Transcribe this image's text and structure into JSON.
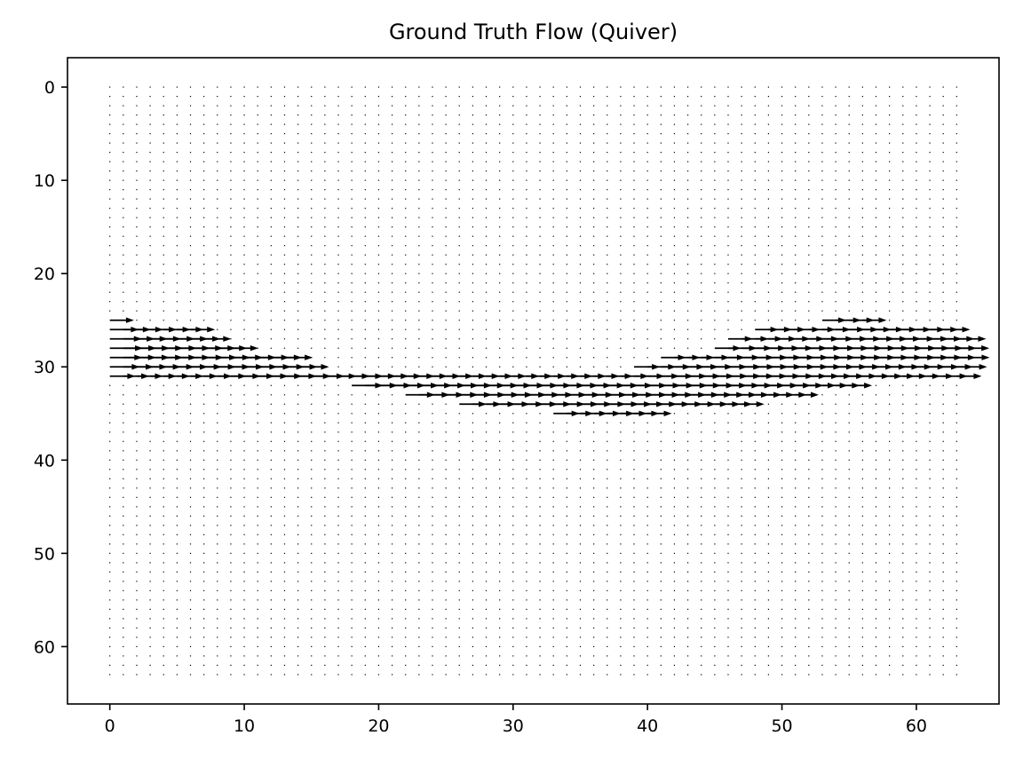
{
  "chart_data": {
    "type": "quiver",
    "title": "Ground Truth Flow (Quiver)",
    "xlabel": "",
    "ylabel": "",
    "xlim": [
      -3.15,
      66.15
    ],
    "ylim": [
      66.15,
      -3.15
    ],
    "y_axis_inverted": true,
    "grid": false,
    "xticks": [
      0,
      10,
      20,
      30,
      40,
      50,
      60
    ],
    "yticks": [
      0,
      10,
      20,
      30,
      40,
      50,
      60
    ],
    "grid_size": 64,
    "sample_step": 1,
    "arrow_color": "#000000",
    "flow_direction": "rightward (+x)",
    "band_rows": [
      23,
      37
    ],
    "background_vector": [
      0,
      0
    ]
  }
}
